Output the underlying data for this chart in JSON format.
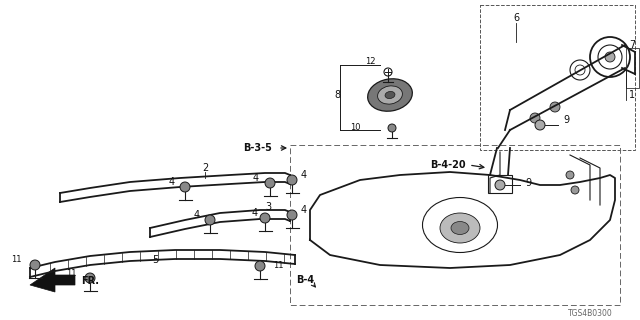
{
  "bg_color": "#ffffff",
  "line_color": "#1a1a1a",
  "diagram_code": "TGS4B0300",
  "figsize": [
    6.4,
    3.2
  ],
  "dpi": 100
}
